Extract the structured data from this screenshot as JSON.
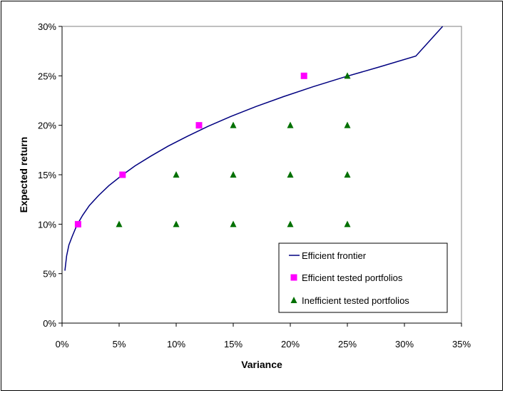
{
  "chart_data": {
    "type": "scatter",
    "title": "",
    "xlabel": "Variance",
    "ylabel": "Expected return",
    "xlim": [
      0,
      0.35
    ],
    "ylim": [
      0,
      0.3
    ],
    "x_ticks": [
      0,
      0.05,
      0.1,
      0.15,
      0.2,
      0.25,
      0.3,
      0.35
    ],
    "x_tick_labels": [
      "0%",
      "5%",
      "10%",
      "15%",
      "20%",
      "25%",
      "30%",
      "35%"
    ],
    "y_ticks": [
      0,
      0.05,
      0.1,
      0.15,
      0.2,
      0.25,
      0.3
    ],
    "y_tick_labels": [
      "0%",
      "5%",
      "10%",
      "15%",
      "20%",
      "25%",
      "30%"
    ],
    "grid": false,
    "legend_position": "bottom-right",
    "series": [
      {
        "name": "Efficient frontier",
        "kind": "line",
        "color": "#000080",
        "x": [
          0.0025,
          0.004,
          0.006,
          0.009,
          0.013,
          0.018,
          0.024,
          0.032,
          0.041,
          0.052,
          0.064,
          0.078,
          0.093,
          0.11,
          0.128,
          0.148,
          0.17,
          0.194,
          0.22,
          0.248,
          0.278,
          0.31,
          0.3335
        ],
        "y": [
          0.053,
          0.068,
          0.079,
          0.088,
          0.099,
          0.109,
          0.119,
          0.129,
          0.139,
          0.149,
          0.159,
          0.169,
          0.179,
          0.189,
          0.199,
          0.209,
          0.219,
          0.229,
          0.239,
          0.249,
          0.259,
          0.27,
          0.3
        ]
      },
      {
        "name": "Efficient tested portfolios",
        "kind": "square",
        "color": "#ff00ff",
        "x": [
          0.014,
          0.053,
          0.12,
          0.212
        ],
        "y": [
          0.1,
          0.15,
          0.2,
          0.25
        ]
      },
      {
        "name": "Inefficient tested portfolios",
        "kind": "triangle",
        "color": "#007000",
        "x": [
          0.05,
          0.1,
          0.15,
          0.2,
          0.25,
          0.1,
          0.15,
          0.2,
          0.25,
          0.15,
          0.2,
          0.25,
          0.25
        ],
        "y": [
          0.1,
          0.1,
          0.1,
          0.1,
          0.1,
          0.15,
          0.15,
          0.15,
          0.15,
          0.2,
          0.2,
          0.2,
          0.25
        ]
      }
    ]
  }
}
